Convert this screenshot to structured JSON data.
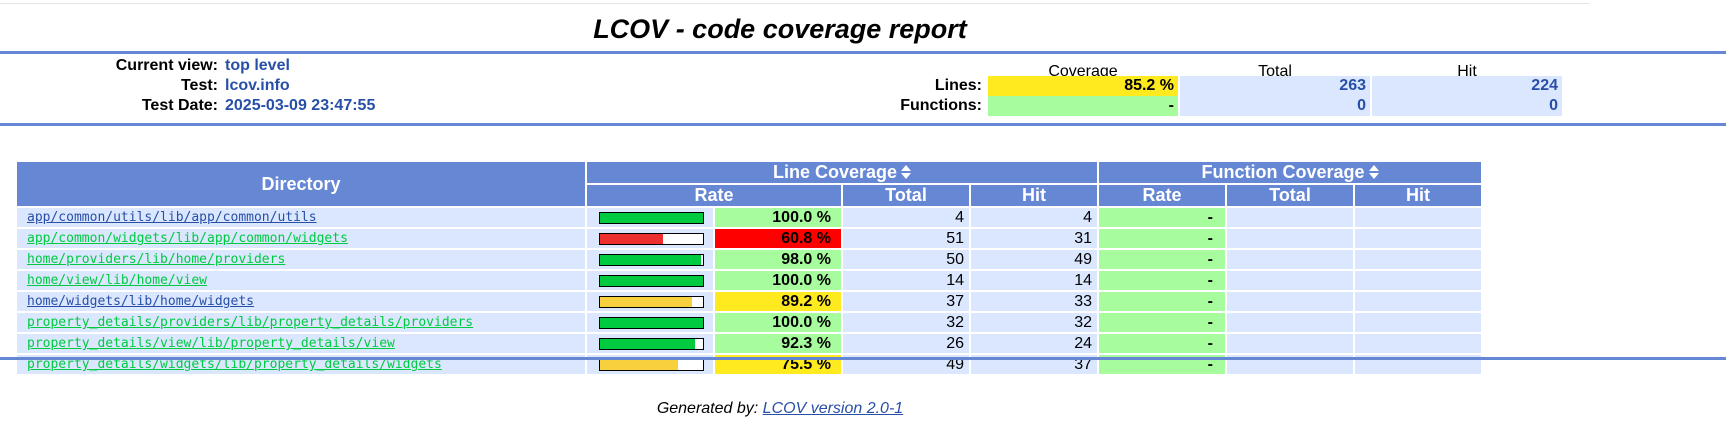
{
  "title": "LCOV - code coverage report",
  "header": {
    "current_view_label": "Current view:",
    "current_view_value": "top level",
    "test_label": "Test:",
    "test_value": "lcov.info",
    "test_date_label": "Test Date:",
    "test_date_value": "2025-03-09 23:47:55"
  },
  "summary": {
    "col_coverage": "Coverage",
    "col_total": "Total",
    "col_hit": "Hit",
    "lines_label": "Lines:",
    "lines_coverage": "85.2 %",
    "lines_total": "263",
    "lines_hit": "224",
    "functions_label": "Functions:",
    "functions_coverage": "-",
    "functions_total": "0",
    "functions_hit": "0"
  },
  "table": {
    "directory_header": "Directory",
    "line_coverage_header": "Line Coverage",
    "function_coverage_header": "Function Coverage",
    "rate_header": "Rate",
    "total_header": "Total",
    "hit_header": "Hit",
    "rows": [
      {
        "dir": "app/common/utils/lib/app/common/utils",
        "link_color": "blue",
        "rate": "100.0 %",
        "rate_fraction": 1.0,
        "level": "green",
        "total": "4",
        "hit": "4",
        "fn_rate": "-"
      },
      {
        "dir": "app/common/widgets/lib/app/common/widgets",
        "link_color": "green",
        "rate": "60.8 %",
        "rate_fraction": 0.608,
        "level": "red",
        "total": "51",
        "hit": "31",
        "fn_rate": "-"
      },
      {
        "dir": "home/providers/lib/home/providers",
        "link_color": "green",
        "rate": "98.0 %",
        "rate_fraction": 0.98,
        "level": "green",
        "total": "50",
        "hit": "49",
        "fn_rate": "-"
      },
      {
        "dir": "home/view/lib/home/view",
        "link_color": "green",
        "rate": "100.0 %",
        "rate_fraction": 1.0,
        "level": "green",
        "total": "14",
        "hit": "14",
        "fn_rate": "-"
      },
      {
        "dir": "home/widgets/lib/home/widgets",
        "link_color": "blue",
        "rate": "89.2 %",
        "rate_fraction": 0.892,
        "level": "yellow",
        "total": "37",
        "hit": "33",
        "fn_rate": "-"
      },
      {
        "dir": "property_details/providers/lib/property_details/providers",
        "link_color": "green",
        "rate": "100.0 %",
        "rate_fraction": 1.0,
        "level": "green",
        "total": "32",
        "hit": "32",
        "fn_rate": "-"
      },
      {
        "dir": "property_details/view/lib/property_details/view",
        "link_color": "green",
        "rate": "92.3 %",
        "rate_fraction": 0.923,
        "level": "green",
        "total": "26",
        "hit": "24",
        "fn_rate": "-"
      },
      {
        "dir": "property_details/widgets/lib/property_details/widgets",
        "link_color": "green",
        "rate": "75.5 %",
        "rate_fraction": 0.755,
        "level": "yellow",
        "total": "49",
        "hit": "37",
        "fn_rate": "-"
      }
    ]
  },
  "footer": {
    "generated_by": "Generated by:",
    "tool_link": "LCOV version 2.0-1"
  },
  "colors": {
    "header_blue": "#6688d4",
    "cell_blue": "#dae7fe",
    "green": "#a7fc9d",
    "yellow": "#ffea20",
    "red": "#ff0000",
    "bar_green": "#00cb40",
    "bar_yellow": "#f7d13d",
    "bar_red": "#ed2f2f"
  }
}
